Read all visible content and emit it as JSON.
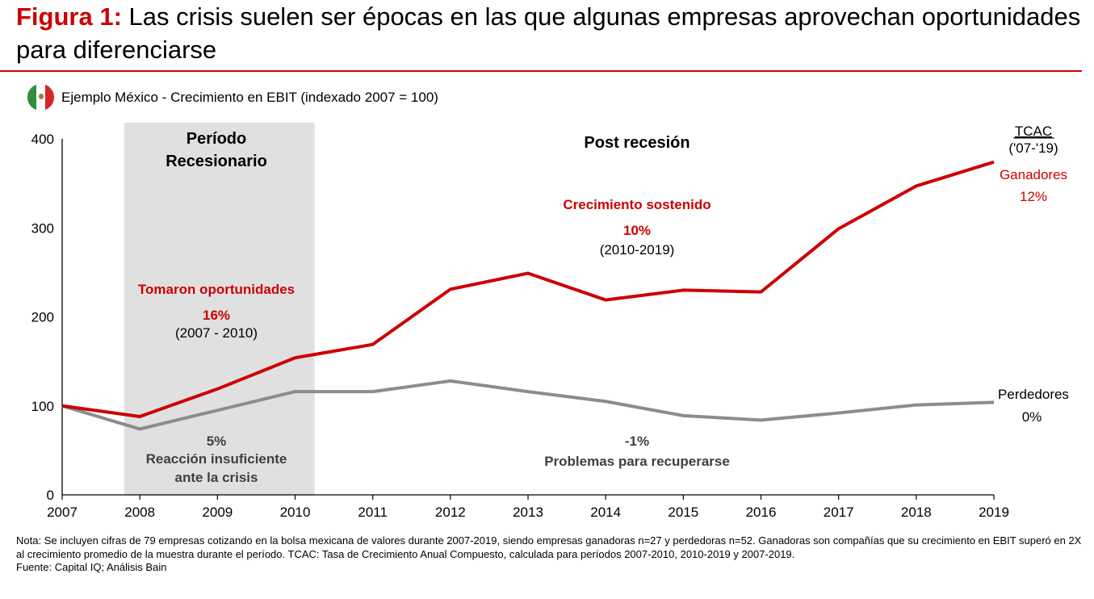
{
  "header": {
    "figure_label": "Figura 1:",
    "title": " Las crisis suelen ser épocas en las que algunas empresas aprovechan oportunidades para diferenciarse",
    "subtitle": "Ejemplo México - Crecimiento en EBIT (indexado 2007 = 100)",
    "flag_icon": "mexico-flag-icon"
  },
  "chart_data": {
    "type": "line",
    "title": "Ejemplo México - Crecimiento en EBIT (indexado 2007 = 100)",
    "xlabel": "",
    "ylabel": "",
    "x": [
      "2007",
      "2008",
      "2009",
      "2010",
      "2011",
      "2012",
      "2013",
      "2014",
      "2015",
      "2016",
      "2017",
      "2018",
      "2019"
    ],
    "ylim": [
      0,
      400
    ],
    "yticks": [
      "0",
      "100",
      "200",
      "300",
      "400"
    ],
    "grid": false,
    "series": [
      {
        "name": "Ganadores",
        "color": "#cc0000",
        "values": [
          100,
          88,
          119,
          154,
          169,
          231,
          249,
          219,
          230,
          228,
          299,
          347,
          374
        ]
      },
      {
        "name": "Perdedores",
        "color": "#8c8c8c",
        "values": [
          100,
          74,
          95,
          116,
          116,
          128,
          116,
          105,
          89,
          84,
          92,
          101,
          104
        ]
      }
    ],
    "shaded_region": {
      "label_line1": "Período",
      "label_line2": "Recesionario",
      "from": 2007.8,
      "to": 2010.25,
      "color": "#e0e0e0"
    },
    "annotations": {
      "post": "Post recesión",
      "win_crisis_label": "Tomaron oportunidades",
      "win_crisis_pct": "16%",
      "win_crisis_range": "(2007 - 2010)",
      "win_post_label": "Crecimiento sostenido",
      "win_post_pct": "10%",
      "win_post_range": "(2010-2019)",
      "lose_crisis_pct": "5%",
      "lose_crisis_line1": "Reacción insuficiente",
      "lose_crisis_line2": "ante la crisis",
      "lose_post_pct": "-1%",
      "lose_post_label": "Problemas para recuperarse",
      "tcac_title": "TCAC",
      "tcac_range": "('07-'19)",
      "win_name": "Ganadores",
      "win_total": "12%",
      "lose_name": "Perdedores",
      "lose_total": "0%"
    }
  },
  "footer": {
    "note": "Nota: Se incluyen cifras de 79 empresas cotizando en la bolsa mexicana de valores durante 2007-2019, siendo empresas ganadoras n=27 y perdedoras n=52. Ganadoras son compañías que su crecimiento en EBIT superó en 2X al crecimiento promedio de la muestra durante el período. TCAC: Tasa de Crecimiento Anual Compuesto, calculada para períodos 2007-2010, 2010-2019 y 2007-2019.",
    "source": "Fuente: Capital IQ; Análisis Bain"
  }
}
